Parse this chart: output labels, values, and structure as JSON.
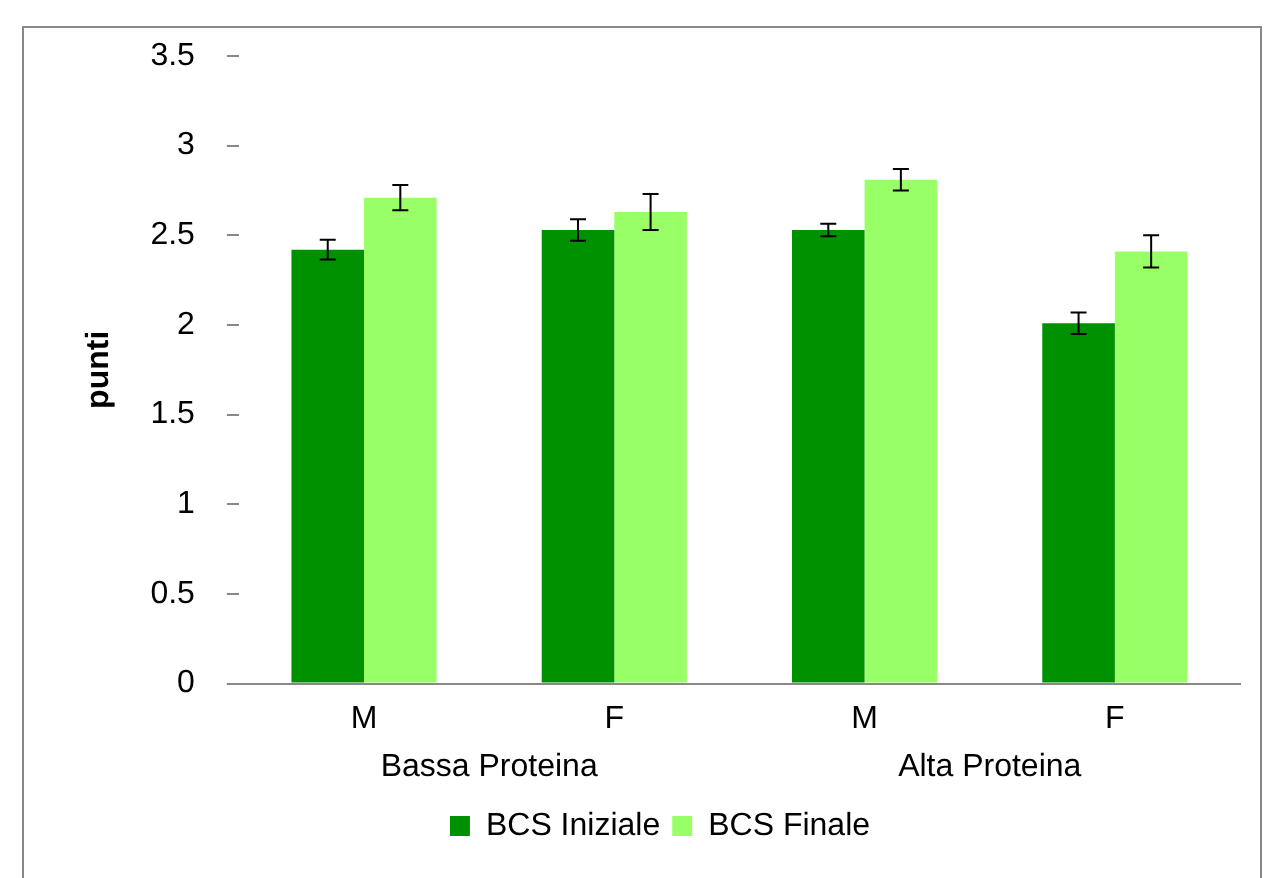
{
  "chart_data": {
    "type": "bar",
    "ylabel": "punti",
    "categories": [
      "M",
      "F",
      "M",
      "F"
    ],
    "series": [
      {
        "name": "BCS Iniziale",
        "color": "#009100",
        "values": [
          2.42,
          2.53,
          2.53,
          2.01
        ],
        "errors": [
          0.055,
          0.06,
          0.035,
          0.06
        ]
      },
      {
        "name": "BCS Finale",
        "color": "#99ff66",
        "values": [
          2.71,
          2.63,
          2.81,
          2.41
        ],
        "errors": [
          0.07,
          0.1,
          0.06,
          0.09
        ]
      }
    ],
    "annotations": [
      "Bassa Proteina",
      "Alta Proteina"
    ],
    "ylim": [
      0,
      3.5
    ],
    "yticks": [
      0,
      0.5,
      1,
      1.5,
      2,
      2.5,
      3,
      3.5
    ],
    "grid": false,
    "legend": "bottom"
  }
}
